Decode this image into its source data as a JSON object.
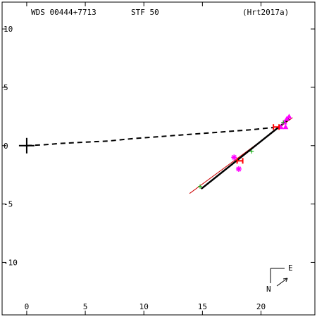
{
  "header": {
    "wds": "WDS 00444+7713",
    "name": "STF  50",
    "ref": "(Hrt2017a)"
  },
  "compass": {
    "east": "E",
    "north": "N"
  },
  "chart_data": {
    "type": "scatter",
    "xlim": [
      -2.1,
      24.6
    ],
    "ylim": [
      -14.5,
      12.3
    ],
    "x_ticks": [
      0,
      5,
      10,
      15,
      20
    ],
    "y_ticks": [
      10,
      5,
      0,
      -5,
      -10
    ],
    "x_tick_labels": [
      "0",
      "5",
      "10",
      "15",
      "20"
    ],
    "y_tick_labels": [
      "10",
      "5",
      "0",
      "-5",
      "-10"
    ],
    "primary": [
      0,
      0
    ],
    "orbit_path": [
      [
        0,
        0
      ],
      [
        1.5,
        0.08
      ],
      [
        3,
        0.2
      ],
      [
        5,
        0.3
      ],
      [
        7,
        0.4
      ],
      [
        9,
        0.6
      ],
      [
        11,
        0.75
      ],
      [
        13,
        0.9
      ],
      [
        15,
        1.05
      ],
      [
        17,
        1.2
      ],
      [
        19,
        1.35
      ],
      [
        21,
        1.55
      ]
    ],
    "fit_line": [
      [
        13.9,
        -4.1
      ],
      [
        22.7,
        2.4
      ]
    ],
    "bold_segment": [
      [
        14.9,
        -3.7
      ],
      [
        22.4,
        2.3
      ]
    ],
    "colors": {
      "points": "#ff00ff",
      "recent": "#ff0000",
      "green": "#00aa00",
      "fit": "#cc0000"
    },
    "series": [
      {
        "marker": "star",
        "points": [
          [
            17.7,
            -1.0
          ],
          [
            18.1,
            -2.0
          ]
        ]
      },
      {
        "marker": "triangle",
        "points": [
          [
            22.0,
            2.0
          ],
          [
            22.2,
            2.3
          ],
          [
            22.4,
            2.5
          ],
          [
            21.7,
            1.6
          ],
          [
            22.1,
            1.6
          ]
        ]
      },
      {
        "marker": "h",
        "points": [
          [
            21.3,
            1.6
          ],
          [
            18.2,
            -1.3
          ]
        ]
      },
      {
        "marker": "plus",
        "points": [
          [
            14.8,
            -3.5
          ],
          [
            19.2,
            -0.5
          ],
          [
            21.9,
            2.0
          ]
        ]
      }
    ]
  }
}
